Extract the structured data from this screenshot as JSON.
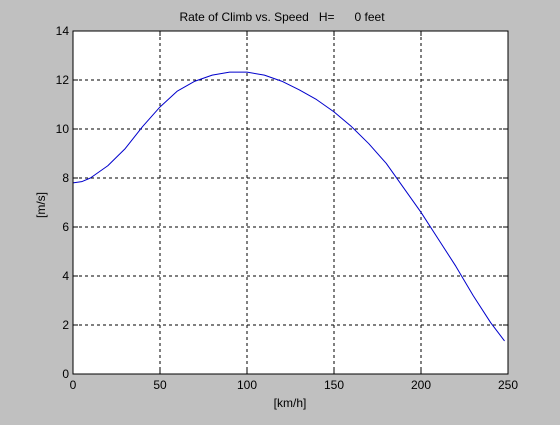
{
  "window": {
    "background": "#c0c0c0"
  },
  "chart_data": {
    "type": "line",
    "title": "Rate of Climb vs. Speed   H=      0 feet",
    "xlabel": "[km/h]",
    "ylabel": "[m/s]",
    "xlim": [
      0,
      250
    ],
    "ylim": [
      0,
      14
    ],
    "xticks": [
      0,
      50,
      100,
      150,
      200,
      250
    ],
    "yticks": [
      0,
      2,
      4,
      6,
      8,
      10,
      12,
      14
    ],
    "xtick_labels": [
      "0",
      "50",
      "100",
      "150",
      "200",
      "250"
    ],
    "ytick_labels": [
      "0",
      "2",
      "4",
      "6",
      "8",
      "10",
      "12",
      "14"
    ],
    "grid": true,
    "grid_style": "dashed",
    "series": [
      {
        "color": "#0000cc",
        "x": [
          0,
          5,
          10,
          20,
          30,
          40,
          50,
          60,
          70,
          80,
          90,
          100,
          110,
          120,
          130,
          140,
          150,
          160,
          170,
          180,
          190,
          200,
          210,
          220,
          230,
          240,
          248
        ],
        "y": [
          7.8,
          7.85,
          8.0,
          8.5,
          9.2,
          10.1,
          10.9,
          11.55,
          11.95,
          12.2,
          12.32,
          12.32,
          12.2,
          11.95,
          11.6,
          11.2,
          10.7,
          10.1,
          9.4,
          8.6,
          7.6,
          6.6,
          5.5,
          4.4,
          3.2,
          2.1,
          1.35
        ]
      }
    ]
  }
}
